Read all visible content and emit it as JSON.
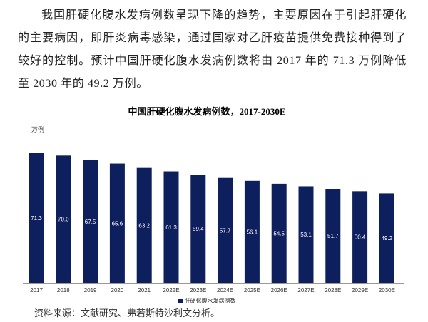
{
  "paragraph": "我国肝硬化腹水发病例数呈现下降的趋势，主要原因在于引起肝硬化的主要病因，即肝炎病毒感染，通过国家对乙肝疫苗提供免费接种得到了较好的控制。预计中国肝硬化腹水发病例数将由 2017 年的 71.3 万例降低至 2030 年的 49.2 万例。",
  "source": "资料来源：文献研究、弗若斯特沙利文分析。",
  "chart_data": {
    "type": "bar",
    "title": "中国肝硬化腹水发病例数，2017-2030E",
    "ylabel": "万例",
    "xlabel": "",
    "categories": [
      "2017",
      "2018",
      "2019",
      "2020",
      "2021",
      "2022E",
      "2023E",
      "2024E",
      "2025E",
      "2026E",
      "2027E",
      "2028E",
      "2029E",
      "2030E"
    ],
    "series": [
      {
        "name": "肝硬化腹水发病例数",
        "values": [
          71.3,
          70.0,
          67.5,
          65.6,
          63.2,
          61.3,
          59.4,
          57.7,
          56.1,
          54.5,
          53.1,
          51.7,
          50.4,
          49.2
        ]
      }
    ],
    "ylim": [
      0,
      75
    ],
    "grid": false,
    "legend": "bottom",
    "bar_color": "#0d1f5c",
    "label_color": "#ffffff"
  }
}
